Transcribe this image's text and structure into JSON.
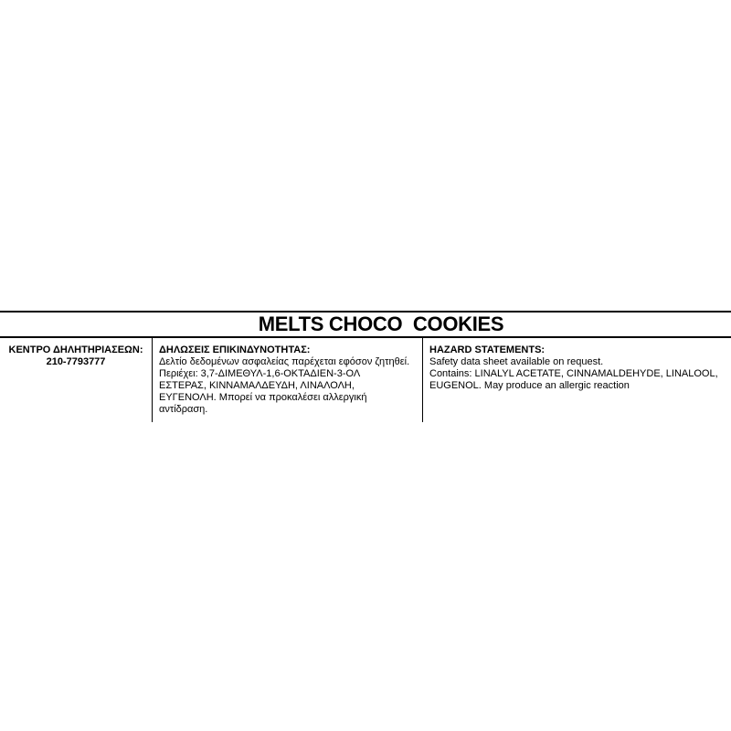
{
  "label": {
    "title": "MELTS CHOCO  COOKIES",
    "poison_center": {
      "heading": "ΚΕΝΤΡΟ ΔΗΛΗΤΗΡΙΑΣΕΩΝ:",
      "phone": "210-7793777"
    },
    "hazard_greek": {
      "heading": "ΔΗΛΩΣΕΙΣ ΕΠΙΚΙΝΔΥΝΟΤΗΤΑΣ:",
      "body": "Δελτίο δεδομένων ασφαλείας παρέχεται εφόσον ζητηθεί.\nΠεριέχει: 3,7-ΔΙΜΕΘΥΛ-1,6-ΟΚΤΑΔΙΕΝ-3-ΟΛ\nΕΣΤΕΡΑΣ, ΚΙΝΝΑΜΑΛΔΕΥΔΗ, ΛΙΝΑΛΟΛΗ,\nΕΥΓΕΝΟΛΗ. Μπορεί να προκαλέσει αλλεργική\nαντίδραση."
    },
    "hazard_english": {
      "heading": "HAZARD STATEMENTS:",
      "body": "Safety data sheet available on request.\nContains: LINALYL ACETATE, CINNAMALDEHYDE, LINALOOL,\nEUGENOL. May produce an allergic reaction"
    },
    "colors": {
      "text": "#000000",
      "line": "#000000",
      "background": "#ffffff"
    }
  }
}
